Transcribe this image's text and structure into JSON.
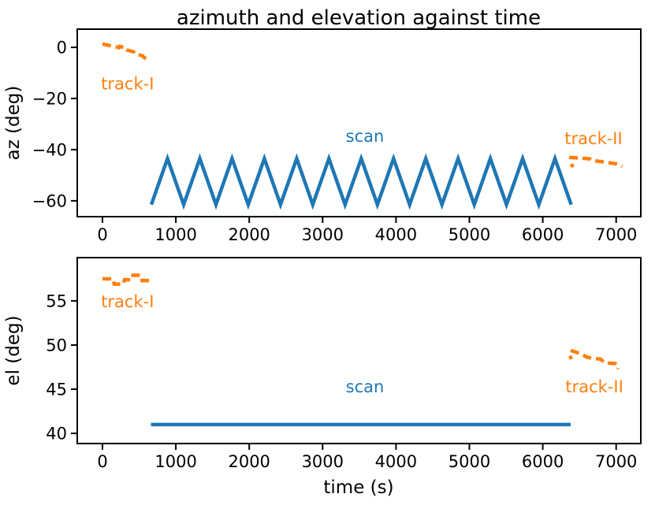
{
  "figure": {
    "title": "azimuth and elevation against time",
    "xlabel": "time (s)",
    "background": "#ffffff",
    "text_color": "#000000"
  },
  "colors": {
    "scan_blue": "#1f77b4",
    "track_orange": "#ff7f0e",
    "axis_black": "#000000"
  },
  "chart_data": [
    {
      "type": "line",
      "name": "azimuth-vs-time",
      "ylabel": "az (deg)",
      "grid": false,
      "legend": "none (inline text annotations)",
      "xlim": [
        -344,
        7336
      ],
      "ylim": [
        -66.2,
        7.1
      ],
      "xticks": [
        0,
        1000,
        2000,
        3000,
        4000,
        5000,
        6000,
        7000
      ],
      "xtick_labels": [
        "0",
        "1000",
        "2000",
        "3000",
        "4000",
        "5000",
        "6000",
        "7000"
      ],
      "yticks": [
        0,
        -20,
        -40,
        -60
      ],
      "ytick_labels": [
        "0",
        "−20",
        "−40",
        "−60"
      ],
      "series": [
        {
          "name": "track-I",
          "color": "#ff7f0e",
          "style": "dashed",
          "width": 4.5,
          "points": [
            [
              0,
              1.3
            ],
            [
              110,
              0.6
            ],
            [
              225,
              -0.1
            ],
            [
              235,
              0.4
            ],
            [
              320,
              -0.3
            ],
            [
              330,
              -1.0
            ],
            [
              425,
              -1.8
            ],
            [
              435,
              -2.4
            ],
            [
              545,
              -3.3
            ],
            [
              560,
              -3.9
            ],
            [
              645,
              -5.0
            ]
          ]
        },
        {
          "name": "scan",
          "color": "#1f77b4",
          "style": "solid",
          "width": 4.5,
          "points": [
            [
              666,
              -61.5
            ],
            [
              886,
              -43.5
            ],
            [
              1106,
              -61.5
            ],
            [
              1326,
              -43.5
            ],
            [
              1546,
              -61.5
            ],
            [
              1766,
              -43.5
            ],
            [
              1986,
              -61.5
            ],
            [
              2206,
              -43.5
            ],
            [
              2426,
              -61.5
            ],
            [
              2646,
              -43.5
            ],
            [
              2866,
              -61.5
            ],
            [
              3086,
              -43.5
            ],
            [
              3306,
              -61.5
            ],
            [
              3526,
              -43.5
            ],
            [
              3746,
              -61.5
            ],
            [
              3966,
              -43.5
            ],
            [
              4186,
              -61.5
            ],
            [
              4406,
              -43.5
            ],
            [
              4626,
              -61.5
            ],
            [
              4846,
              -43.5
            ],
            [
              5066,
              -61.5
            ],
            [
              5286,
              -43.5
            ],
            [
              5506,
              -61.5
            ],
            [
              5726,
              -43.5
            ],
            [
              5946,
              -61.5
            ],
            [
              6166,
              -43.5
            ],
            [
              6386,
              -61.5
            ]
          ]
        },
        {
          "name": "track-II",
          "color": "#ff7f0e",
          "style": "dashed",
          "width": 4.5,
          "points": [
            [
              6360,
              -43.0
            ],
            [
              6500,
              -43.3
            ],
            [
              6640,
              -43.6
            ],
            [
              6660,
              -44.2
            ],
            [
              6800,
              -44.7
            ],
            [
              6920,
              -45.2
            ],
            [
              7010,
              -45.6
            ],
            [
              7080,
              -46.6
            ]
          ],
          "marker_points": [
            [
              6400,
              -46.2
            ]
          ]
        }
      ],
      "annotations": [
        {
          "text": "track-I",
          "x": -20,
          "y": -16.5,
          "anchor": "start",
          "color": "#ff7f0e"
        },
        {
          "text": "scan",
          "x": 3577,
          "y": -36.9,
          "anchor": "middle",
          "color": "#1f77b4"
        },
        {
          "text": "track-II",
          "x": 6692,
          "y": -37.9,
          "anchor": "middle",
          "color": "#ff7f0e"
        }
      ]
    },
    {
      "type": "line",
      "name": "elevation-vs-time",
      "ylabel": "el (deg)",
      "grid": false,
      "legend": "none (inline text annotations)",
      "xlim": [
        -344,
        7336
      ],
      "ylim": [
        38.85,
        59.9
      ],
      "xticks": [
        0,
        1000,
        2000,
        3000,
        4000,
        5000,
        6000,
        7000
      ],
      "xtick_labels": [
        "0",
        "1000",
        "2000",
        "3000",
        "4000",
        "5000",
        "6000",
        "7000"
      ],
      "yticks": [
        55,
        50,
        45,
        40
      ],
      "ytick_labels": [
        "55",
        "50",
        "45",
        "40"
      ],
      "series": [
        {
          "name": "track-I",
          "color": "#ff7f0e",
          "style": "dashed",
          "width": 4.5,
          "points": [
            [
              0,
              57.5
            ],
            [
              145,
              57.5
            ],
            [
              160,
              56.9
            ],
            [
              285,
              56.9
            ],
            [
              300,
              57.4
            ],
            [
              405,
              57.4
            ],
            [
              415,
              57.9
            ],
            [
              525,
              57.9
            ],
            [
              540,
              57.3
            ],
            [
              650,
              57.3
            ]
          ]
        },
        {
          "name": "scan",
          "color": "#1f77b4",
          "style": "solid",
          "width": 4.5,
          "points": [
            [
              660,
              41.0
            ],
            [
              6380,
              41.0
            ]
          ]
        },
        {
          "name": "track-II",
          "color": "#ff7f0e",
          "style": "dashed",
          "width": 4.5,
          "points": [
            [
              6380,
              49.4
            ],
            [
              6520,
              49.0
            ],
            [
              6610,
              48.6
            ],
            [
              6790,
              48.4
            ],
            [
              6840,
              48.0
            ],
            [
              6990,
              47.9
            ],
            [
              7030,
              47.5
            ],
            [
              7020,
              47.3
            ]
          ],
          "marker_points": [
            [
              6380,
              48.6
            ]
          ]
        }
      ],
      "annotations": [
        {
          "text": "track-I",
          "x": -20,
          "y": 54.28,
          "anchor": "start",
          "color": "#ff7f0e"
        },
        {
          "text": "scan",
          "x": 3577,
          "y": 44.65,
          "anchor": "middle",
          "color": "#1f77b4"
        },
        {
          "text": "track-II",
          "x": 6703,
          "y": 44.65,
          "anchor": "middle",
          "color": "#ff7f0e"
        }
      ]
    }
  ]
}
